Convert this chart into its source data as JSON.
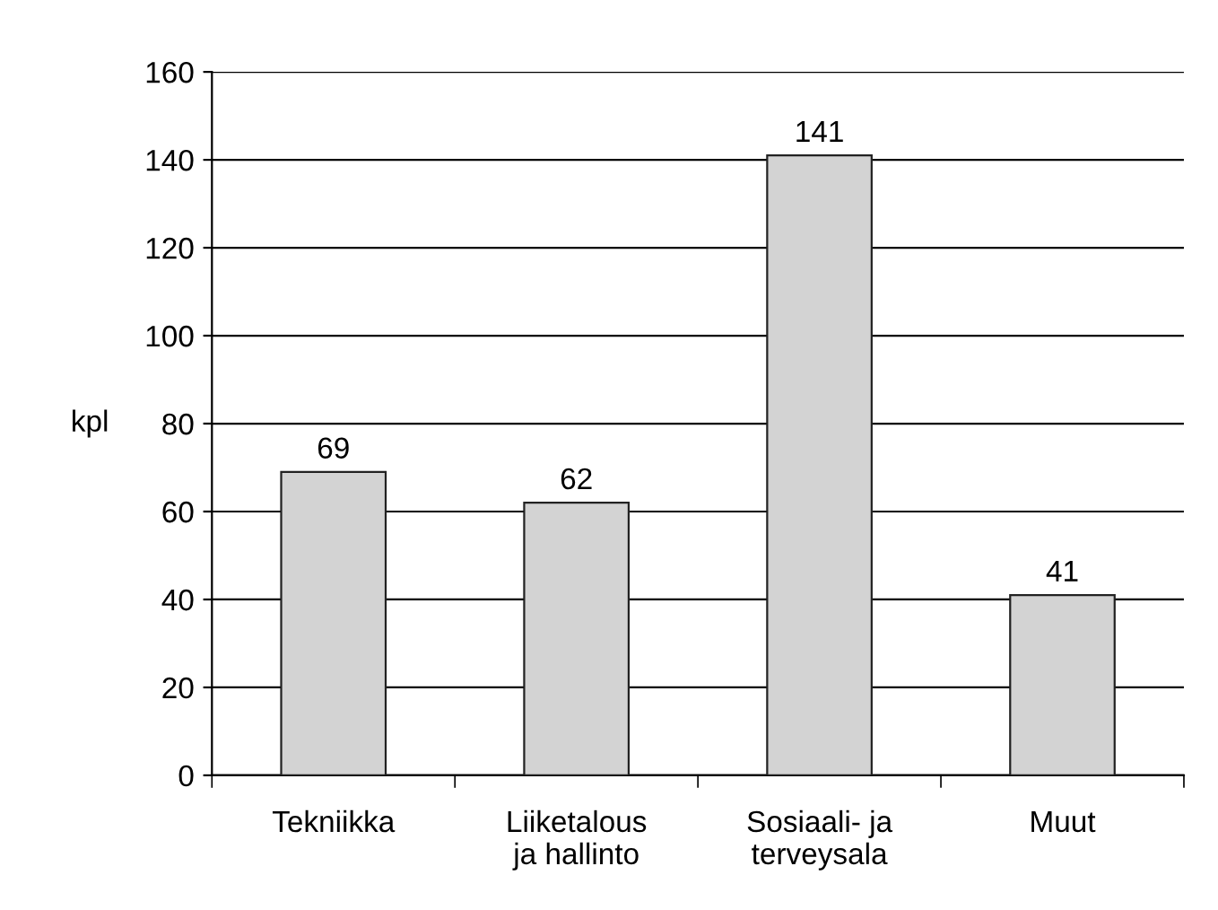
{
  "chart_data": {
    "type": "bar",
    "ylabel": "kpl",
    "categories": [
      "Tekniikka",
      "Liiketalous\nja hallinto",
      "Sosiaali- ja\nterveysala",
      "Muut"
    ],
    "values": [
      69,
      62,
      141,
      41
    ],
    "color": "#d3d3d3",
    "ylim": [
      0,
      160
    ],
    "yticks": [
      0,
      20,
      40,
      60,
      80,
      100,
      120,
      140,
      160
    ],
    "grid": "y",
    "data_labels": true
  }
}
